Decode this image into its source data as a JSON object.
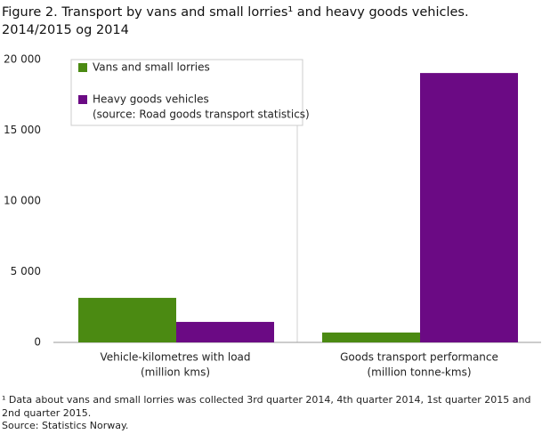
{
  "chart_data": {
    "type": "bar",
    "title": "Figure 2.  Transport by vans and small lorries¹ and heavy goods vehicles.",
    "subtitle": "2014/2015 og 2014",
    "categories": [
      "Vehicle-kilometres with load",
      "Goods transport performance"
    ],
    "category_units": [
      "(million kms)",
      "(million tonne-kms)"
    ],
    "series": [
      {
        "name": "Vans and small lorries",
        "color": "#4b8a12",
        "values": [
          3150,
          700
        ]
      },
      {
        "name": "Heavy goods vehicles",
        "note": "(source: Road goods transport statistics)",
        "color": "#6b0a84",
        "values": [
          1450,
          19050
        ]
      }
    ],
    "ylim": [
      0,
      20000
    ],
    "yticks": [
      0,
      {
        "value": 5000,
        "label": "5 000"
      },
      {
        "value": 10000,
        "label": "10 000"
      },
      {
        "value": 15000,
        "label": "15 000"
      },
      {
        "value": 20000,
        "label": "20 000"
      }
    ],
    "footnote": [
      "¹ Data about vans and small lorries was collected 3rd quarter 2014, 4th quarter 2014, 1st quarter 2015 and",
      "2nd quarter 2015."
    ],
    "source": "Source: Statistics Norway."
  }
}
